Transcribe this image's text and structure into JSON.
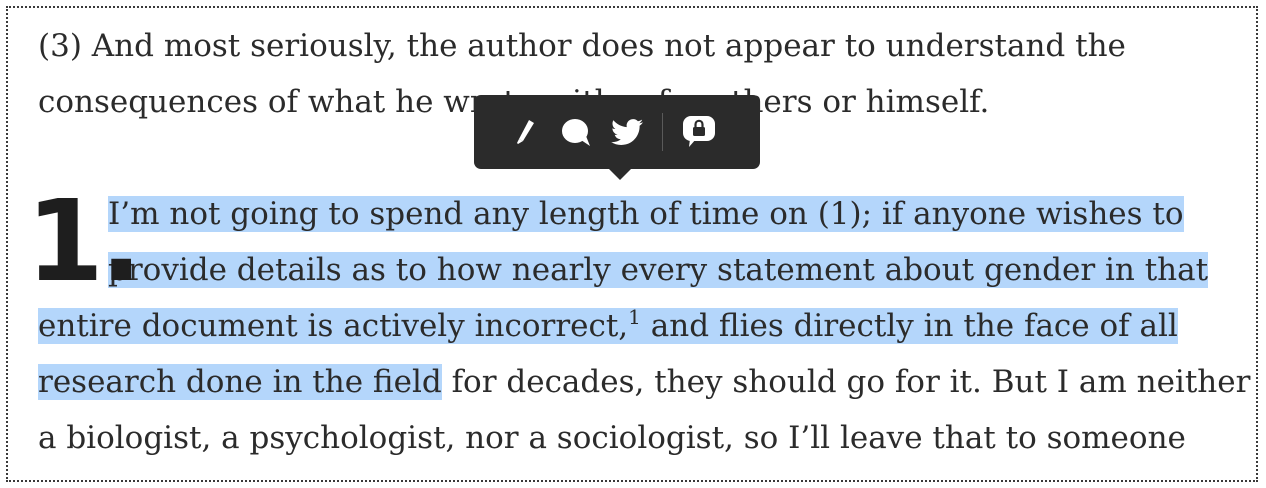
{
  "article": {
    "intro_line1": "(3) And most seriously, the author does not appear to understand the",
    "intro_line2": "consequences of what he wrote, either for others or himself.",
    "dropcap": "1.",
    "p1_line1": "I’m not going to spend any length of time on (1); if anyone wishes to",
    "p1_line2": "provide details as to how nearly every statement about gender in that",
    "p1_line3a": "entire document is actively incorrect,",
    "footnote": "1",
    "p1_line3b": " and flies directly in the face of all",
    "p1_line4_highlight": "research done in the field",
    "p1_line4_rest": " for decades, they should go for it. But I am neither",
    "p1_line5": "a biologist, a psychologist, nor a sociologist, so I’ll leave that to someone"
  },
  "toolbar": {
    "buttons": [
      {
        "icon": "pencil-highlight-icon"
      },
      {
        "icon": "comment-bubble-icon"
      },
      {
        "icon": "twitter-bird-icon"
      },
      {
        "icon": "private-note-lock-icon"
      }
    ]
  },
  "colors": {
    "highlight": "#b4d6fb",
    "toolbar_bg": "#2b2b2b",
    "text": "#2b2b2b"
  }
}
